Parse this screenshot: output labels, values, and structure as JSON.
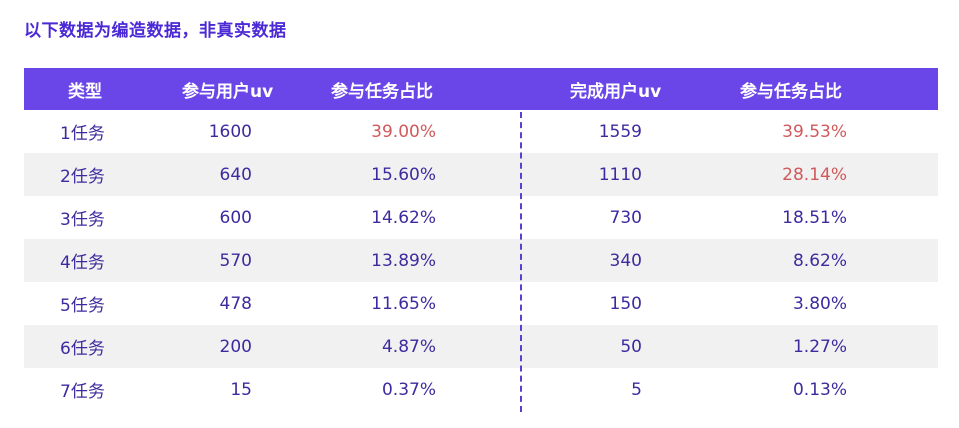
{
  "note": "以下数据为编造数据，非真实数据",
  "header": {
    "type": "类型",
    "participate_uv": "参与用户uv",
    "participate_pct": "参与任务占比",
    "complete_uv": "完成用户uv",
    "complete_pct": "参与任务占比"
  },
  "rows": [
    {
      "type": "1任务",
      "participate_uv": "1600",
      "participate_pct": "39.00%",
      "complete_uv": "1559",
      "complete_pct": "39.53%"
    },
    {
      "type": "2任务",
      "participate_uv": "640",
      "participate_pct": "15.60%",
      "complete_uv": "1110",
      "complete_pct": "28.14%"
    },
    {
      "type": "3任务",
      "participate_uv": "600",
      "participate_pct": "14.62%",
      "complete_uv": "730",
      "complete_pct": "18.51%"
    },
    {
      "type": "4任务",
      "participate_uv": "570",
      "participate_pct": "13.89%",
      "complete_uv": "340",
      "complete_pct": "8.62%"
    },
    {
      "type": "5任务",
      "participate_uv": "478",
      "participate_pct": "11.65%",
      "complete_uv": "150",
      "complete_pct": "3.80%"
    },
    {
      "type": "6任务",
      "participate_uv": "200",
      "participate_pct": "4.87%",
      "complete_uv": "50",
      "complete_pct": "1.27%"
    },
    {
      "type": "7任务",
      "participate_uv": "15",
      "participate_pct": "0.37%",
      "complete_uv": "5",
      "complete_pct": "0.13%"
    }
  ],
  "colors": {
    "header_bg": "#6a45e8",
    "text": "#3e2a9e",
    "highlight": "#d0595c",
    "stripe": "#f1f1f1"
  }
}
